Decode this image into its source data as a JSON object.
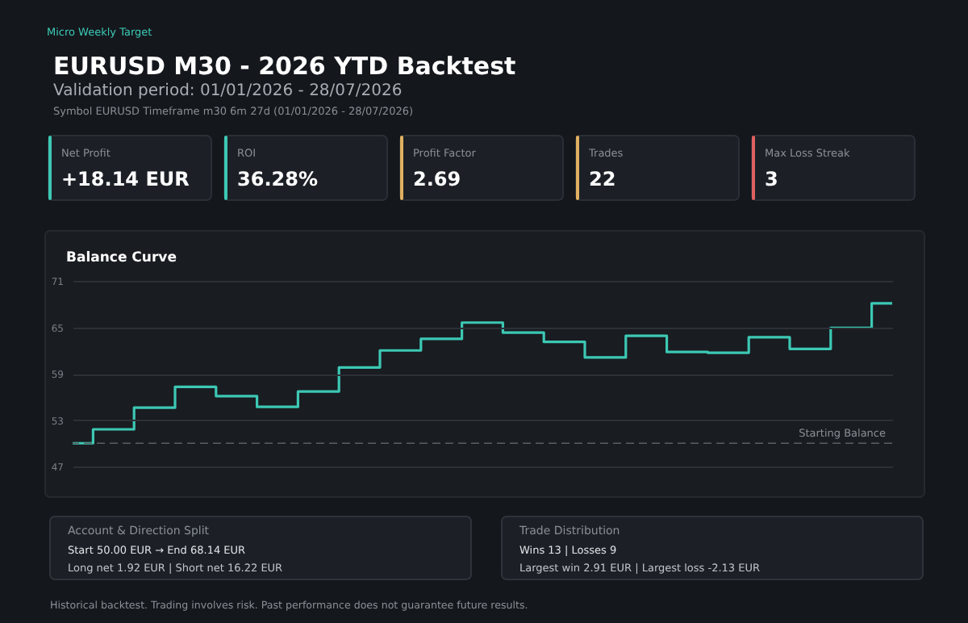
{
  "chart_data": {
    "type": "step",
    "title": "EURUSD M30 - 2026 YTD Backtest",
    "subtitle": [
      "Validation period: 01/01/2026 - 28/07/2026",
      "Symbol EURUSD   Timeframe m30   6m 27d (01/01/2026 - 28/07/2026)"
    ],
    "categories": [
      null,
      null,
      null,
      null,
      null,
      null,
      null,
      null,
      null,
      null,
      null,
      null,
      null,
      null,
      null,
      null,
      null,
      null,
      null,
      null,
      null
    ],
    "series": [
      {
        "color": "#3cc8b4",
        "values": [
          50.0,
          51.8,
          54.6,
          57.3,
          56.1,
          54.7,
          56.7,
          59.8,
          62.0,
          63.5,
          65.6,
          64.3,
          63.1,
          61.1,
          63.9,
          61.8,
          61.7,
          63.7,
          62.2,
          64.9,
          68.1
        ]
      }
    ],
    "ylim": [
      47,
      71
    ],
    "yticks": [
      47,
      53,
      59,
      65,
      71
    ],
    "grid": "y",
    "tick_labels": "y",
    "line_style": "solid",
    "marker": "none",
    "ref_lines": [
      {
        "axis": "y",
        "value": 50,
        "label": "Starting Balance",
        "line_style": "dashed",
        "color": "#5a5f66"
      }
    ],
    "annotations": [
      "Micro Weekly Target",
      "Net Profit",
      "+18.14 EUR",
      "ROI",
      "36.28%",
      "Profit Factor",
      "2.69",
      "Trades",
      "22",
      "Max Loss Streak",
      "3",
      "Balance Curve",
      "Account & Direction Split",
      "Start 50.00 EUR → End 68.14 EUR",
      "Long net 1.92 EUR  |  Short net 16.22 EUR",
      "Trade Distribution",
      "Wins 13  |  Losses 9",
      "Largest win 2.91 EUR  |  Largest loss -2.13 EUR",
      "Historical backtest. Trading involves risk. Past performance does not guarantee future results."
    ]
  }
}
